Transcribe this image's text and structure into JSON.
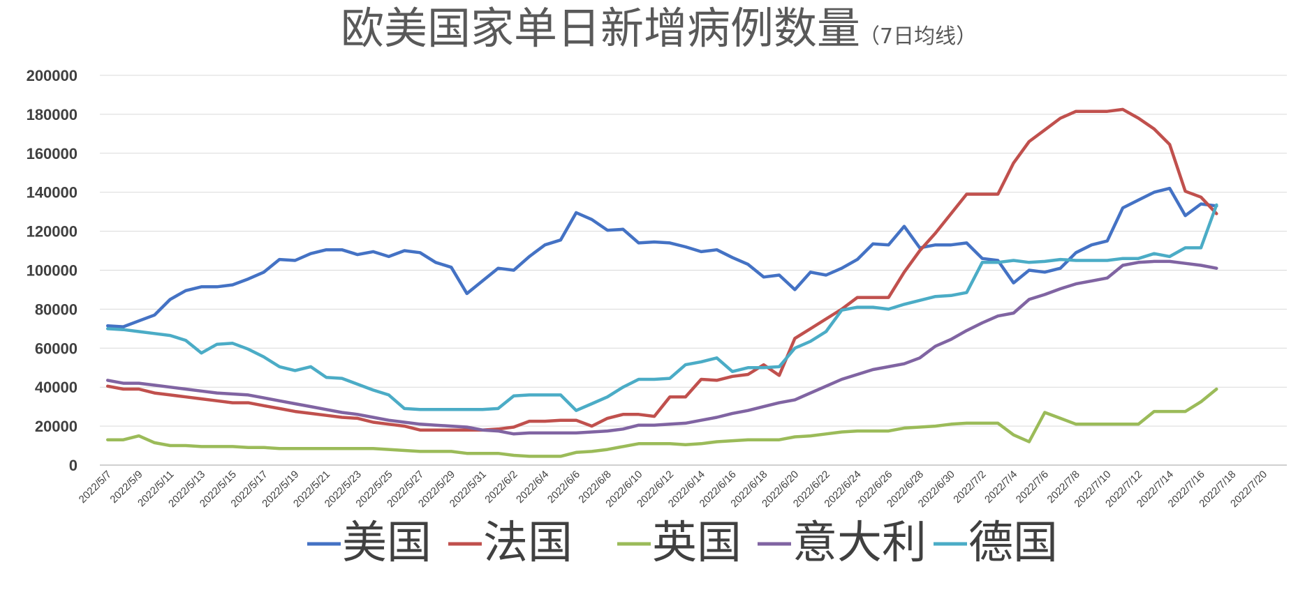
{
  "chart_data": {
    "type": "line",
    "title": "欧美国家单日新增病例数量",
    "subtitle": "（7日均线）",
    "ylim": [
      0,
      200000
    ],
    "yticks": [
      "200000",
      "180000",
      "160000",
      "140000",
      "120000",
      "100000",
      "80000",
      "60000",
      "40000",
      "20000",
      "0"
    ],
    "xtick_labels": [
      "2022/5/7",
      "2022/5/9",
      "2022/5/11",
      "2022/5/13",
      "2022/5/15",
      "2022/5/17",
      "2022/5/19",
      "2022/5/21",
      "2022/5/23",
      "2022/5/25",
      "2022/5/27",
      "2022/5/29",
      "2022/5/31",
      "2022/6/2",
      "2022/6/4",
      "2022/6/6",
      "2022/6/8",
      "2022/6/10",
      "2022/6/12",
      "2022/6/14",
      "2022/6/16",
      "2022/6/18",
      "2022/6/20",
      "2022/6/22",
      "2022/6/24",
      "2022/6/26",
      "2022/6/28",
      "2022/6/30",
      "2022/7/2",
      "2022/7/4",
      "2022/7/6",
      "2022/7/8",
      "2022/7/10",
      "2022/7/12",
      "2022/7/14",
      "2022/7/16",
      "2022/7/18",
      "2022/7/20"
    ],
    "grid": true,
    "legend_position": "bottom",
    "series": [
      {
        "name": "美国",
        "color": "#4472C4",
        "values": [
          71500,
          71000,
          74000,
          77000,
          85000,
          89500,
          91500,
          91500,
          92500,
          95500,
          99000,
          105500,
          105000,
          108500,
          110500,
          110500,
          108000,
          109500,
          107000,
          110000,
          109000,
          104000,
          101500,
          88000,
          94500,
          101000,
          100000,
          107000,
          113000,
          115500,
          129500,
          126000,
          120500,
          121000,
          114000,
          114500,
          114000,
          112000,
          109500,
          110500,
          106500,
          103000,
          96500,
          97500,
          90000,
          99000,
          97500,
          101000,
          105500,
          113500,
          113000,
          122500,
          111500,
          113000,
          113000,
          114000,
          106000,
          105000,
          93500,
          100000,
          99000,
          101000,
          109000,
          113000,
          115000,
          132000,
          136000,
          140000,
          142000,
          128000,
          134000,
          133000
        ]
      },
      {
        "name": "法国",
        "color": "#C0504D",
        "values": [
          40500,
          39000,
          39000,
          37000,
          36000,
          35000,
          34000,
          33000,
          32000,
          32000,
          30500,
          29000,
          27500,
          26500,
          25500,
          24500,
          24000,
          22000,
          21000,
          20000,
          18000,
          18000,
          18000,
          18000,
          18000,
          18500,
          19500,
          22500,
          22500,
          23000,
          23000,
          20000,
          24000,
          26000,
          26000,
          25000,
          35000,
          35000,
          44000,
          43500,
          45500,
          46500,
          51500,
          46000,
          65000,
          70000,
          75000,
          80000,
          86000,
          86000,
          86000,
          99000,
          110000,
          119000,
          129000,
          139000,
          139000,
          139000,
          155000,
          166000,
          172000,
          178000,
          181500,
          181500,
          181500,
          182500,
          178000,
          172500,
          164500,
          140500,
          137500,
          129000
        ]
      },
      {
        "name": "英国",
        "color": "#9BBB59",
        "values": [
          13000,
          13000,
          15000,
          11500,
          10000,
          10000,
          9500,
          9500,
          9500,
          9000,
          9000,
          8500,
          8500,
          8500,
          8500,
          8500,
          8500,
          8500,
          8000,
          7500,
          7000,
          7000,
          7000,
          6000,
          6000,
          6000,
          5000,
          4500,
          4500,
          4500,
          6500,
          7000,
          8000,
          9500,
          11000,
          11000,
          11000,
          10500,
          11000,
          12000,
          12500,
          13000,
          13000,
          13000,
          14500,
          15000,
          16000,
          17000,
          17500,
          17500,
          17500,
          19000,
          19500,
          20000,
          21000,
          21500,
          21500,
          21500,
          15500,
          12000,
          27000,
          24000,
          21000,
          21000,
          21000,
          21000,
          21000,
          27500,
          27500,
          27500,
          32500,
          39000
        ]
      },
      {
        "name": "意大利",
        "color": "#8064A2",
        "values": [
          43500,
          42000,
          42000,
          41000,
          40000,
          39000,
          38000,
          37000,
          36500,
          36000,
          34500,
          33000,
          31500,
          30000,
          28500,
          27000,
          26000,
          24500,
          23000,
          22000,
          21000,
          20500,
          20000,
          19500,
          18000,
          17500,
          16000,
          16500,
          16500,
          16500,
          16500,
          17000,
          17500,
          18500,
          20500,
          20500,
          21000,
          21500,
          23000,
          24500,
          26500,
          28000,
          30000,
          32000,
          33500,
          37000,
          40500,
          44000,
          46500,
          49000,
          50500,
          52000,
          55000,
          61000,
          64500,
          69000,
          73000,
          76500,
          78000,
          85000,
          87500,
          90500,
          93000,
          94500,
          96000,
          102500,
          104000,
          104500,
          104500,
          103500,
          102500,
          101000
        ]
      },
      {
        "name": "德国",
        "color": "#4BACC6",
        "values": [
          70000,
          69500,
          68500,
          67500,
          66500,
          64000,
          57500,
          62000,
          62500,
          59500,
          55500,
          50500,
          48500,
          50500,
          45000,
          44500,
          41500,
          38500,
          36000,
          29000,
          28500,
          28500,
          28500,
          28500,
          28500,
          29000,
          35500,
          36000,
          36000,
          36000,
          28000,
          31500,
          35000,
          40000,
          44000,
          44000,
          44500,
          51500,
          53000,
          55000,
          48000,
          50000,
          50000,
          50500,
          60000,
          63500,
          68500,
          79500,
          81000,
          81000,
          80000,
          82500,
          84500,
          86500,
          87000,
          88500,
          104000,
          104000,
          105000,
          104000,
          104500,
          105500,
          105000,
          105000,
          105000,
          106000,
          106000,
          108500,
          107000,
          111500,
          111500,
          133500
        ]
      }
    ]
  }
}
